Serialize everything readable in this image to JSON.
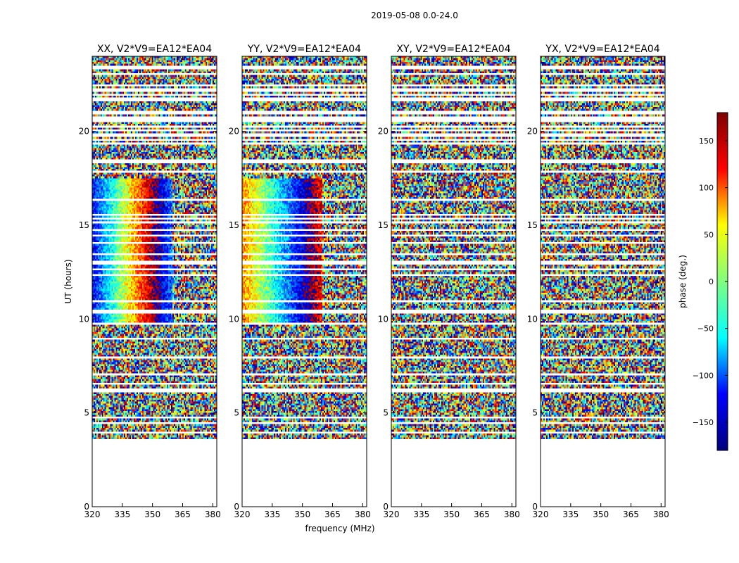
{
  "figure": {
    "suptitle": "2019-05-08 0.0-24.0",
    "xlabel": "frequency (MHz)",
    "ylabel": "UT (hours)"
  },
  "chart_data": {
    "type": "heatmap",
    "suptitle": "2019-05-08 0.0-24.0",
    "xlabel": "frequency (MHz)",
    "ylabel": "UT (hours)",
    "xlim": [
      320,
      382
    ],
    "ylim": [
      0,
      24
    ],
    "xticks": [
      320,
      335,
      350,
      365,
      380
    ],
    "yticks": [
      0,
      5,
      10,
      15,
      20
    ],
    "data_start_ut": 3.4,
    "colorbar": {
      "label": "phase (deg.)",
      "range": [
        -180,
        180
      ],
      "ticks": [
        150,
        100,
        50,
        0,
        -50,
        -100,
        -150
      ],
      "tick_labels": [
        "150",
        "100",
        "50",
        "0",
        "−50",
        "−100",
        "−150"
      ],
      "colormap": "jet",
      "stops": [
        "#00007f",
        "#0000ff",
        "#00ffff",
        "#7fff7f",
        "#ffff00",
        "#ff0000",
        "#7f0000"
      ]
    },
    "panels": [
      {
        "title": "XX, V2*V9=EA12*EA04",
        "polarization": "XX",
        "coherent_band_ut": [
          9.8,
          17.5
        ],
        "coherent_freq_max": 360
      },
      {
        "title": "YY, V2*V9=EA12*EA04",
        "polarization": "YY",
        "coherent_band_ut": [
          9.8,
          17.5
        ],
        "coherent_freq_max": 360
      },
      {
        "title": "XY, V2*V9=EA12*EA04",
        "polarization": "XY",
        "coherent_band_ut": null,
        "coherent_freq_max": null
      },
      {
        "title": "YX, V2*V9=EA12*EA04",
        "polarization": "YX",
        "coherent_band_ut": null,
        "coherent_freq_max": null
      }
    ]
  }
}
